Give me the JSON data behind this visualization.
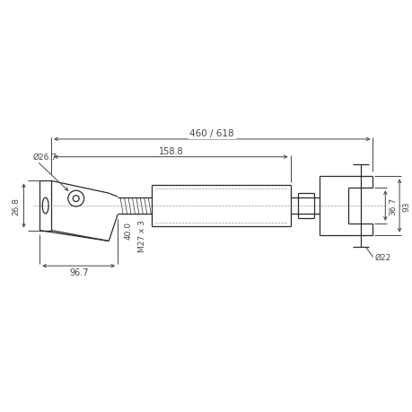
{
  "bg_color": "#ffffff",
  "line_color": "#2a2a2a",
  "dim_color": "#444444",
  "centerline_color": "#999999",
  "fig_width": 4.6,
  "fig_height": 4.6,
  "dpi": 100,
  "annotations": {
    "dim_460_618": "460 / 618",
    "dim_158_8": "158.8",
    "dim_phi_26_7": "Ø26.7",
    "dim_26_8": "26.8",
    "dim_96_7": "96.7",
    "dim_40_0": "40.0",
    "dim_m27x3": "M27 x 3",
    "dim_36_7": "36.7",
    "dim_93": "93",
    "dim_phi_22": "Ø22"
  }
}
